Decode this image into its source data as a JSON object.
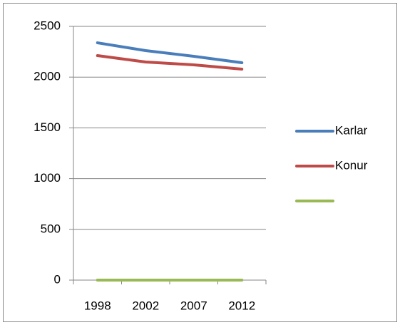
{
  "chart_data": {
    "type": "line",
    "categories": [
      "1998",
      "2002",
      "2007",
      "2012"
    ],
    "series": [
      {
        "name": "Karlar",
        "color": "#4a7ebb",
        "values": [
          2338,
          2261,
          2205,
          2142
        ]
      },
      {
        "name": "Konur",
        "color": "#be4b48",
        "values": [
          2212,
          2149,
          2121,
          2079
        ]
      },
      {
        "color": "#98b954",
        "values": [
          0,
          0,
          0,
          0
        ]
      }
    ],
    "ylim": [
      0,
      2500
    ],
    "yticks": [
      0,
      500,
      1000,
      1500,
      2000,
      2500
    ],
    "grid": true,
    "legend": "right"
  }
}
